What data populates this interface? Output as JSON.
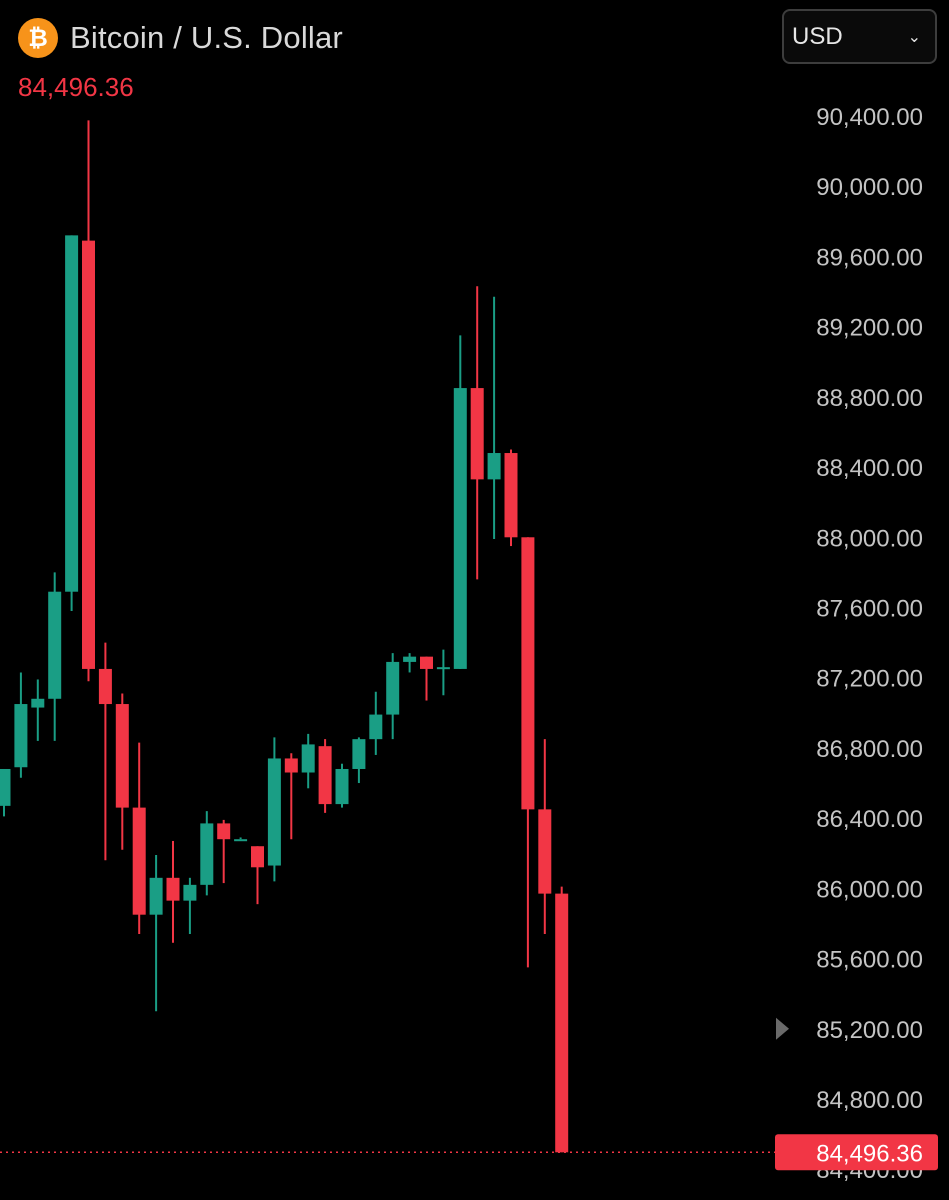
{
  "header": {
    "icon": "bitcoin-icon",
    "icon_glyph": "₿",
    "title": "Bitcoin / U.S. Dollar",
    "last_price": "84,496.36"
  },
  "currency_select": {
    "selected": "USD",
    "icon": "chevron-down-icon"
  },
  "colors": {
    "up": "#1a9e85",
    "down": "#f23645",
    "background": "#000000",
    "axis_text": "#c4c4c4",
    "brand": "#f7931a"
  },
  "chart_data": {
    "type": "candlestick",
    "title": "Bitcoin / U.S. Dollar",
    "last_price": 84496.36,
    "last_price_label": "84,496.36",
    "y_axis": {
      "position": "right",
      "ticks": [
        84400,
        84800,
        85200,
        85600,
        86000,
        86400,
        86800,
        87200,
        87600,
        88000,
        88400,
        88800,
        89200,
        89600,
        90000,
        90400
      ],
      "tick_labels": [
        "84,400.00",
        "84,800.00",
        "85,200.00",
        "85,600.00",
        "86,000.00",
        "86,400.00",
        "86,800.00",
        "87,200.00",
        "87,600.00",
        "88,000.00",
        "88,400.00",
        "88,800.00",
        "89,200.00",
        "89,600.00",
        "90,000.00",
        "90,400.00"
      ],
      "ylim": [
        84250,
        90620
      ]
    },
    "grid": false,
    "candles": [
      {
        "o": 86470,
        "h": 86640,
        "l": 86410,
        "c": 86680
      },
      {
        "o": 86690,
        "h": 87230,
        "l": 86630,
        "c": 87050
      },
      {
        "o": 87030,
        "h": 87190,
        "l": 86840,
        "c": 87080
      },
      {
        "o": 87080,
        "h": 87800,
        "l": 86840,
        "c": 87690
      },
      {
        "o": 87690,
        "h": 89700,
        "l": 87580,
        "c": 89720
      },
      {
        "o": 89690,
        "h": 90375,
        "l": 87180,
        "c": 87250
      },
      {
        "o": 87250,
        "h": 87400,
        "l": 86160,
        "c": 87050
      },
      {
        "o": 87050,
        "h": 87110,
        "l": 86220,
        "c": 86460
      },
      {
        "o": 86460,
        "h": 86830,
        "l": 85740,
        "c": 85850
      },
      {
        "o": 85850,
        "h": 86190,
        "l": 85300,
        "c": 86060
      },
      {
        "o": 86060,
        "h": 86270,
        "l": 85690,
        "c": 85930
      },
      {
        "o": 85930,
        "h": 86060,
        "l": 85740,
        "c": 86020
      },
      {
        "o": 86020,
        "h": 86440,
        "l": 85960,
        "c": 86370
      },
      {
        "o": 86370,
        "h": 86390,
        "l": 86030,
        "c": 86280
      },
      {
        "o": 86280,
        "h": 86290,
        "l": 86280,
        "c": 86280
      },
      {
        "o": 86240,
        "h": 86220,
        "l": 85910,
        "c": 86120
      },
      {
        "o": 86130,
        "h": 86860,
        "l": 86040,
        "c": 86740
      },
      {
        "o": 86740,
        "h": 86770,
        "l": 86280,
        "c": 86660
      },
      {
        "o": 86660,
        "h": 86880,
        "l": 86570,
        "c": 86820
      },
      {
        "o": 86810,
        "h": 86850,
        "l": 86430,
        "c": 86480
      },
      {
        "o": 86480,
        "h": 86710,
        "l": 86460,
        "c": 86680
      },
      {
        "o": 86680,
        "h": 86860,
        "l": 86600,
        "c": 86850
      },
      {
        "o": 86850,
        "h": 87120,
        "l": 86760,
        "c": 86990
      },
      {
        "o": 86990,
        "h": 87340,
        "l": 86850,
        "c": 87290
      },
      {
        "o": 87290,
        "h": 87340,
        "l": 87230,
        "c": 87320
      },
      {
        "o": 87320,
        "h": 87300,
        "l": 87070,
        "c": 87250
      },
      {
        "o": 87250,
        "h": 87360,
        "l": 87100,
        "c": 87260
      },
      {
        "o": 87250,
        "h": 89150,
        "l": 87250,
        "c": 88850
      },
      {
        "o": 88850,
        "h": 89430,
        "l": 87760,
        "c": 88330
      },
      {
        "o": 88330,
        "h": 89370,
        "l": 87990,
        "c": 88480
      },
      {
        "o": 88480,
        "h": 88500,
        "l": 87950,
        "c": 88000
      },
      {
        "o": 88000,
        "h": 88000,
        "l": 85550,
        "c": 86450
      },
      {
        "o": 86450,
        "h": 86850,
        "l": 85740,
        "c": 85970
      },
      {
        "o": 85970,
        "h": 86010,
        "l": 84500,
        "c": 84496.36
      }
    ]
  }
}
